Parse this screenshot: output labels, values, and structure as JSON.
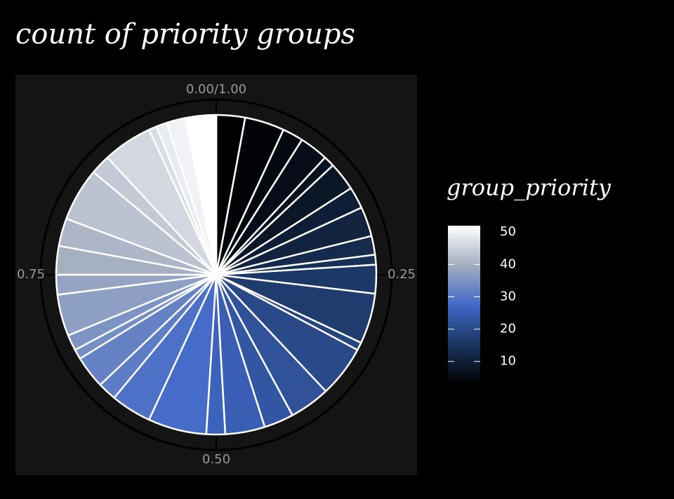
{
  "chart_data": {
    "type": "pie",
    "title": "count of priority groups",
    "values": [
      0.029,
      0.04,
      0.021,
      0.029,
      0.011,
      0.029,
      0.022,
      0.03,
      0.019,
      0.01,
      0.029,
      0.051,
      0.008,
      0.052,
      0.041,
      0.03,
      0.04,
      0.019,
      0.059,
      0.041,
      0.019,
      0.033,
      0.01,
      0.016,
      0.042,
      0.02,
      0.029,
      0.028,
      0.054,
      0.02,
      0.05,
      0.008,
      0.011,
      0.019,
      0.031
    ],
    "priorities": [
      3,
      4,
      5,
      6,
      7,
      8,
      10,
      11,
      13,
      14,
      16,
      17,
      19,
      20,
      22,
      23,
      25,
      26,
      28,
      29,
      31,
      32,
      34,
      35,
      37,
      38,
      40,
      41,
      43,
      44,
      46,
      47,
      49,
      50,
      52
    ],
    "xlim": [
      0,
      1
    ],
    "xticks": [
      {
        "value": 0,
        "label": "0.00/1.00"
      },
      {
        "value": 0.25,
        "label": "0.25"
      },
      {
        "value": 0.5,
        "label": "0.50"
      },
      {
        "value": 0.75,
        "label": "0.75"
      }
    ],
    "legend_title": "group_priority",
    "legend_lim": [
      3,
      52
    ],
    "legend_ticks": [
      10,
      20,
      30,
      40,
      50
    ],
    "palette": [
      "#000000",
      "#1a3560",
      "#4169c8",
      "#a3aec0",
      "#ffffff"
    ],
    "slice_border": "#ffffff",
    "panel_color": "#141414",
    "background": "#000000"
  }
}
